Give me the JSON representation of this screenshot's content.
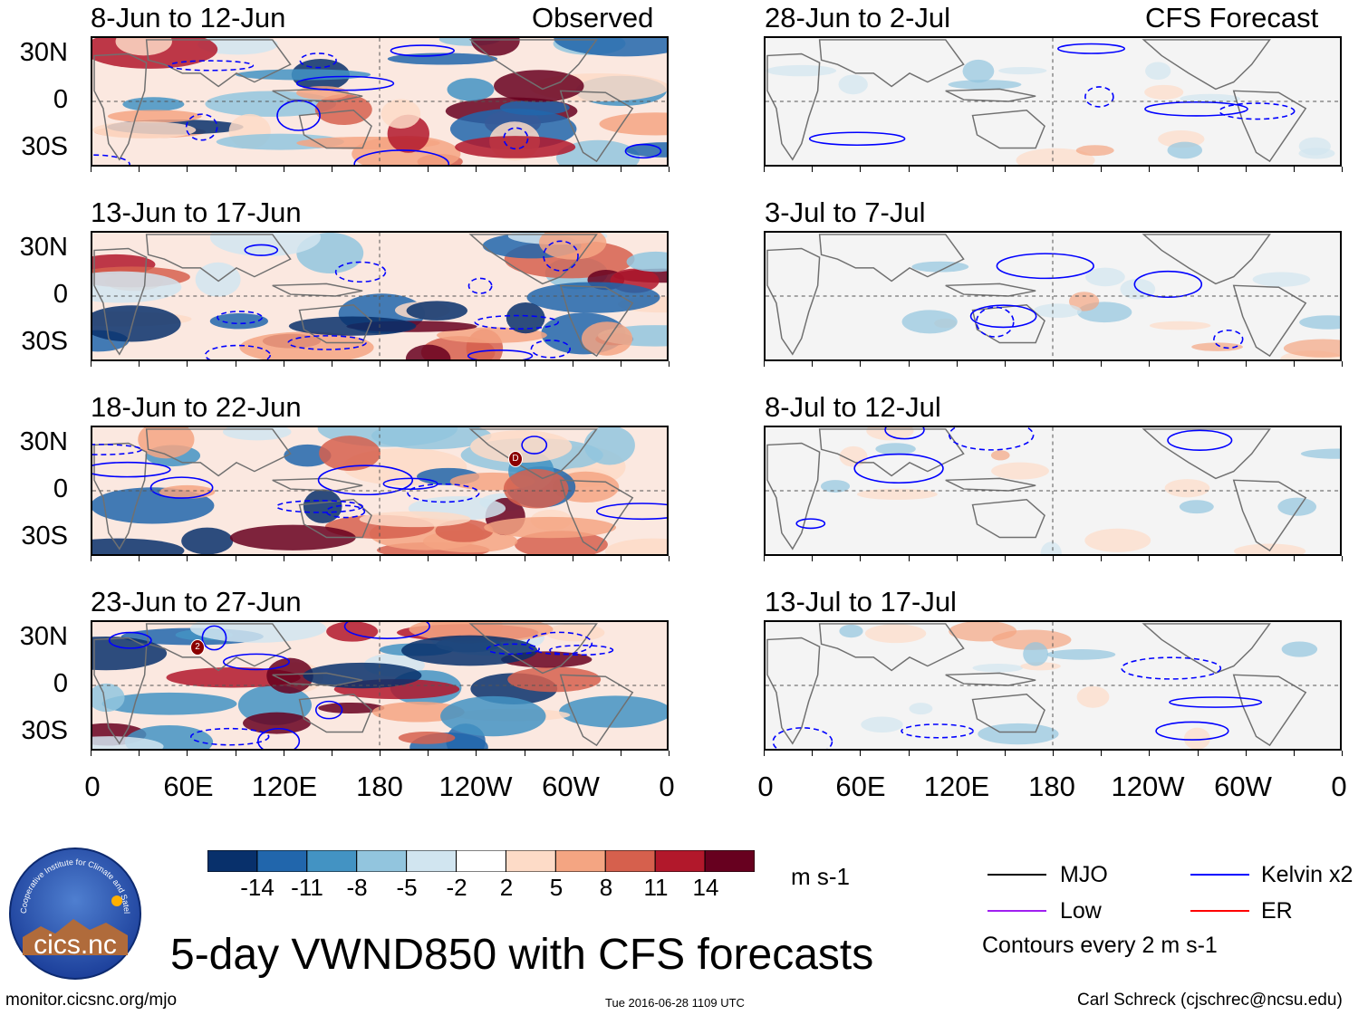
{
  "title": "5-day VWND850 with CFS forecasts",
  "website": "monitor.cicsnc.org/mjo",
  "timestamp": "Tue 2016-06-28 1109 UTC",
  "author": "Carl Schreck (cjschrec@ncsu.edu)",
  "logo": {
    "text": "cics.nc",
    "ring_text": "Cooperative Institute for Climate and Satellites"
  },
  "columns": {
    "observed_label": "Observed",
    "forecast_label": "CFS Forecast"
  },
  "observed_panels": [
    {
      "dates": "8-Jun to 12-Jun"
    },
    {
      "dates": "13-Jun to 17-Jun"
    },
    {
      "dates": "18-Jun to 22-Jun"
    },
    {
      "dates": "23-Jun to 27-Jun"
    }
  ],
  "forecast_panels": [
    {
      "dates": "28-Jun to 2-Jul"
    },
    {
      "dates": "3-Jul to 7-Jul"
    },
    {
      "dates": "8-Jul to 12-Jul"
    },
    {
      "dates": "13-Jul to 17-Jul"
    }
  ],
  "lat_labels": [
    "30N",
    "0",
    "30S"
  ],
  "lon_labels": [
    "0",
    "60E",
    "120E",
    "180",
    "120W",
    "60W",
    "0"
  ],
  "colorbar": {
    "unit": "m s-1",
    "labels": [
      "-14",
      "-11",
      "-8",
      "-5",
      "-2",
      "2",
      "5",
      "8",
      "11",
      "14"
    ],
    "colors": [
      "#08306b",
      "#2166ac",
      "#4393c3",
      "#92c5de",
      "#d1e5f0",
      "#ffffff",
      "#fddbc7",
      "#f4a582",
      "#d6604d",
      "#b2182b",
      "#67001f"
    ]
  },
  "legend": {
    "items": [
      {
        "label": "MJO",
        "color": "#000000"
      },
      {
        "label": "Kelvin x2",
        "color": "#0000ff"
      },
      {
        "label": "Low",
        "color": "#a020f0"
      },
      {
        "label": "ER",
        "color": "#ff0000"
      }
    ],
    "note": "Contours every 2 m s-1"
  },
  "storm_markers": {
    "panel3": "D",
    "panel4": "2"
  }
}
